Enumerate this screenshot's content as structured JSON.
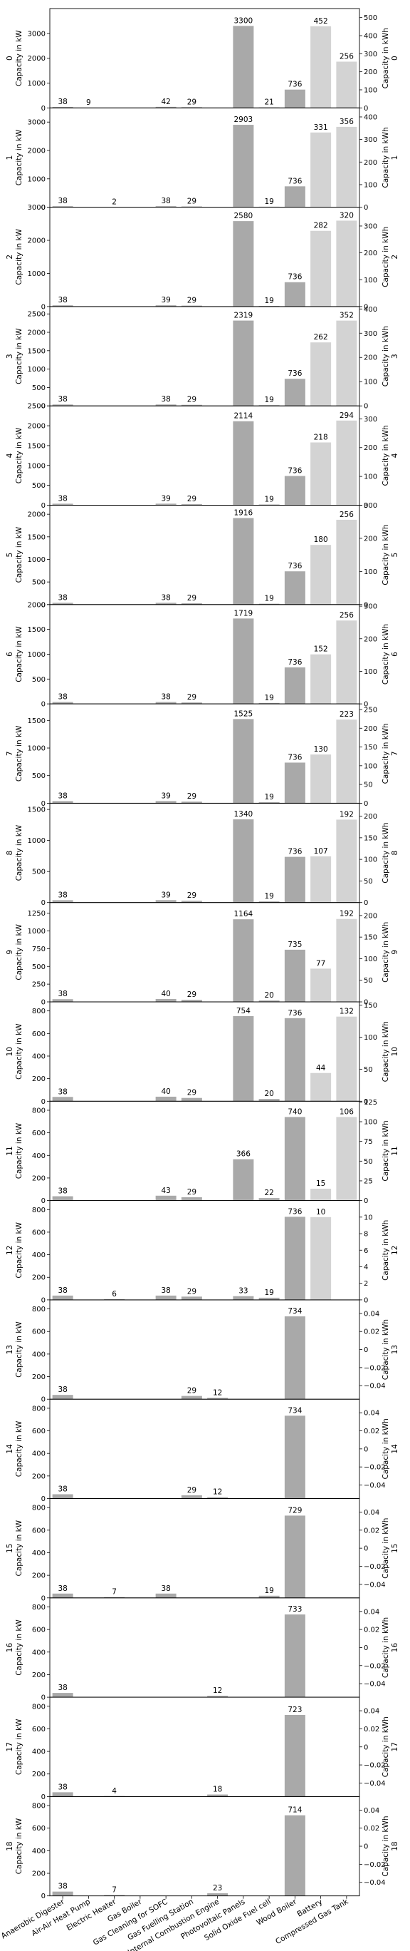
{
  "chart_data": {
    "type": "bar",
    "categories": [
      "Anaerobic Digester",
      "Air-Air Heat Pump",
      "Electric Heater",
      "Gas Boiler",
      "Gas Cleaning for SOFC",
      "Gas Fuelling Station",
      "Internal Combustion Engine",
      "Photovoltaic Panels",
      "Solid Oxide Fuel cell",
      "Wood Boiler",
      "Battery",
      "Compressed Gas Tank"
    ],
    "left_axis_label": "Capacity in kW",
    "right_axis_label": "Capacity in kWh",
    "kwh_categories": [
      "Battery",
      "Compressed Gas Tank"
    ],
    "colors": {
      "kw_bar": "#a9a9a9",
      "kwh_bar": "#d3d3d3"
    },
    "panels": [
      {
        "name": "0",
        "kw": [
          38,
          9,
          null,
          null,
          42,
          29,
          null,
          3300,
          21,
          736
        ],
        "kwh": [
          452,
          256
        ],
        "ylim_left": [
          0,
          4000
        ],
        "ticks_left": [
          0,
          1000,
          2000,
          3000
        ],
        "ylim_right": [
          0,
          550
        ],
        "ticks_right": [
          0,
          100,
          200,
          300,
          400,
          500
        ]
      },
      {
        "name": "1",
        "kw": [
          38,
          null,
          2,
          null,
          38,
          29,
          null,
          2903,
          19,
          736
        ],
        "kwh": [
          331,
          356
        ],
        "ylim_left": [
          0,
          3500
        ],
        "ticks_left": [
          0,
          1000,
          2000,
          3000
        ],
        "ylim_right": [
          0,
          440
        ],
        "ticks_right": [
          0,
          100,
          200,
          300,
          400
        ]
      },
      {
        "name": "2",
        "kw": [
          38,
          null,
          null,
          null,
          39,
          29,
          null,
          2580,
          19,
          736
        ],
        "kwh": [
          282,
          320
        ],
        "ylim_left": [
          0,
          3000
        ],
        "ticks_left": [
          0,
          1000,
          2000,
          3000
        ],
        "ylim_right": [
          0,
          370
        ],
        "ticks_right": [
          0,
          100,
          200,
          300
        ]
      },
      {
        "name": "3",
        "kw": [
          38,
          null,
          null,
          null,
          38,
          29,
          null,
          2319,
          19,
          736
        ],
        "kwh": [
          262,
          352
        ],
        "ylim_left": [
          0,
          2700
        ],
        "ticks_left": [
          0,
          500,
          1000,
          1500,
          2000,
          2500
        ],
        "ylim_right": [
          0,
          410
        ],
        "ticks_right": [
          0,
          100,
          200,
          300,
          400
        ]
      },
      {
        "name": "4",
        "kw": [
          38,
          null,
          null,
          null,
          39,
          29,
          null,
          2114,
          19,
          736
        ],
        "kwh": [
          218,
          294
        ],
        "ylim_left": [
          0,
          2500
        ],
        "ticks_left": [
          0,
          500,
          1000,
          1500,
          2000,
          2500
        ],
        "ylim_right": [
          0,
          345
        ],
        "ticks_right": [
          0,
          100,
          200,
          300
        ]
      },
      {
        "name": "5",
        "kw": [
          38,
          null,
          null,
          null,
          38,
          29,
          null,
          1916,
          19,
          736
        ],
        "kwh": [
          180,
          256
        ],
        "ylim_left": [
          0,
          2200
        ],
        "ticks_left": [
          0,
          500,
          1000,
          1500,
          2000
        ],
        "ylim_right": [
          0,
          300
        ],
        "ticks_right": [
          0,
          100,
          200,
          300
        ]
      },
      {
        "name": "6",
        "kw": [
          38,
          null,
          null,
          null,
          38,
          29,
          null,
          1719,
          19,
          736
        ],
        "kwh": [
          152,
          256
        ],
        "ylim_left": [
          0,
          2000
        ],
        "ticks_left": [
          0,
          500,
          1000,
          1500,
          2000
        ],
        "ylim_right": [
          0,
          305
        ],
        "ticks_right": [
          0,
          100,
          200,
          300
        ]
      },
      {
        "name": "7",
        "kw": [
          38,
          null,
          null,
          null,
          39,
          29,
          null,
          1525,
          19,
          736
        ],
        "kwh": [
          130,
          223
        ],
        "ylim_left": [
          0,
          1800
        ],
        "ticks_left": [
          0,
          500,
          1000,
          1500
        ],
        "ylim_right": [
          0,
          265
        ],
        "ticks_right": [
          0,
          50,
          100,
          150,
          200,
          250
        ]
      },
      {
        "name": "8",
        "kw": [
          38,
          null,
          null,
          null,
          39,
          29,
          null,
          1340,
          19,
          736
        ],
        "kwh": [
          107,
          192
        ],
        "ylim_left": [
          0,
          1600
        ],
        "ticks_left": [
          0,
          500,
          1000,
          1500
        ],
        "ylim_right": [
          0,
          230
        ],
        "ticks_right": [
          0,
          50,
          100,
          150,
          200
        ]
      },
      {
        "name": "9",
        "kw": [
          38,
          null,
          null,
          null,
          40,
          29,
          null,
          1164,
          20,
          735
        ],
        "kwh": [
          77,
          192
        ],
        "ylim_left": [
          0,
          1400
        ],
        "ticks_left": [
          0,
          250,
          500,
          750,
          1000,
          1250
        ],
        "ylim_right": [
          0,
          230
        ],
        "ticks_right": [
          0,
          50,
          100,
          150,
          200
        ]
      },
      {
        "name": "10",
        "kw": [
          38,
          null,
          null,
          null,
          40,
          29,
          null,
          754,
          20,
          736
        ],
        "kwh": [
          44,
          132
        ],
        "ylim_left": [
          0,
          880
        ],
        "ticks_left": [
          0,
          200,
          400,
          600,
          800
        ],
        "ylim_right": [
          0,
          155
        ],
        "ticks_right": [
          0,
          50,
          100,
          150
        ]
      },
      {
        "name": "11",
        "kw": [
          38,
          null,
          null,
          null,
          43,
          29,
          null,
          366,
          22,
          740
        ],
        "kwh": [
          15,
          106
        ],
        "ylim_left": [
          0,
          880
        ],
        "ticks_left": [
          0,
          200,
          400,
          600,
          800
        ],
        "ylim_right": [
          0,
          126
        ],
        "ticks_right": [
          0,
          25,
          50,
          75,
          100,
          125
        ]
      },
      {
        "name": "12",
        "kw": [
          38,
          null,
          6,
          null,
          38,
          29,
          null,
          33,
          19,
          736
        ],
        "kwh": [
          10,
          null
        ],
        "ylim_left": [
          0,
          880
        ],
        "ticks_left": [
          0,
          200,
          400,
          600,
          800
        ],
        "ylim_right": [
          0,
          12
        ],
        "ticks_right": [
          0,
          2,
          4,
          6,
          8,
          10
        ]
      },
      {
        "name": "13",
        "kw": [
          38,
          null,
          null,
          null,
          null,
          29,
          12,
          null,
          null,
          734
        ],
        "kwh": [
          null,
          null
        ],
        "ylim_left": [
          0,
          880
        ],
        "ticks_left": [
          0,
          200,
          400,
          600,
          800
        ],
        "ylim_right": [
          -0.055,
          0.055
        ],
        "ticks_right": [
          -0.04,
          -0.02,
          0.0,
          0.02,
          0.04
        ]
      },
      {
        "name": "14",
        "kw": [
          38,
          null,
          null,
          null,
          null,
          29,
          12,
          null,
          null,
          734
        ],
        "kwh": [
          null,
          null
        ],
        "ylim_left": [
          0,
          880
        ],
        "ticks_left": [
          0,
          200,
          400,
          600,
          800
        ],
        "ylim_right": [
          -0.055,
          0.055
        ],
        "ticks_right": [
          -0.04,
          -0.02,
          0.0,
          0.02,
          0.04
        ]
      },
      {
        "name": "15",
        "kw": [
          38,
          null,
          7,
          null,
          38,
          null,
          null,
          null,
          19,
          729
        ],
        "kwh": [
          null,
          null
        ],
        "ylim_left": [
          0,
          880
        ],
        "ticks_left": [
          0,
          200,
          400,
          600,
          800
        ],
        "ylim_right": [
          -0.055,
          0.055
        ],
        "ticks_right": [
          -0.04,
          -0.02,
          0.0,
          0.02,
          0.04
        ]
      },
      {
        "name": "16",
        "kw": [
          38,
          null,
          null,
          null,
          null,
          null,
          12,
          null,
          null,
          733
        ],
        "kwh": [
          null,
          null
        ],
        "ylim_left": [
          0,
          880
        ],
        "ticks_left": [
          0,
          200,
          400,
          600,
          800
        ],
        "ylim_right": [
          -0.055,
          0.055
        ],
        "ticks_right": [
          -0.04,
          -0.02,
          0.0,
          0.02,
          0.04
        ]
      },
      {
        "name": "17",
        "kw": [
          38,
          null,
          4,
          null,
          null,
          null,
          18,
          null,
          null,
          723
        ],
        "kwh": [
          null,
          null
        ],
        "ylim_left": [
          0,
          880
        ],
        "ticks_left": [
          0,
          200,
          400,
          600,
          800
        ],
        "ylim_right": [
          -0.055,
          0.055
        ],
        "ticks_right": [
          -0.04,
          -0.02,
          0.0,
          0.02,
          0.04
        ]
      },
      {
        "name": "18",
        "kw": [
          38,
          null,
          7,
          null,
          null,
          null,
          23,
          null,
          null,
          714
        ],
        "kwh": [
          null,
          null
        ],
        "ylim_left": [
          0,
          880
        ],
        "ticks_left": [
          0,
          200,
          400,
          600,
          800
        ],
        "ylim_right": [
          -0.055,
          0.055
        ],
        "ticks_right": [
          -0.04,
          -0.02,
          0.0,
          0.02,
          0.04
        ]
      }
    ]
  }
}
